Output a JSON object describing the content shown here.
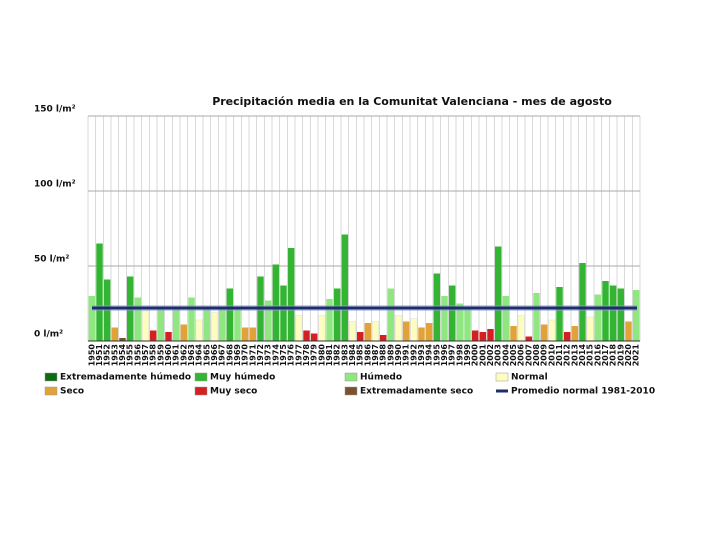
{
  "chart_data": {
    "type": "bar",
    "title": "Precipitación media en la Comunitat Valenciana - mes de agosto",
    "categories": [
      "1950",
      "1951",
      "1952",
      "1953",
      "1954",
      "1955",
      "1956",
      "1957",
      "1958",
      "1959",
      "1960",
      "1961",
      "1962",
      "1963",
      "1964",
      "1965",
      "1966",
      "1967",
      "1968",
      "1969",
      "1970",
      "1971",
      "1972",
      "1973",
      "1974",
      "1975",
      "1976",
      "1977",
      "1978",
      "1979",
      "1980",
      "1981",
      "1982",
      "1983",
      "1984",
      "1985",
      "1986",
      "1987",
      "1988",
      "1989",
      "1990",
      "1991",
      "1992",
      "1993",
      "1994",
      "1995",
      "1996",
      "1997",
      "1998",
      "1999",
      "2000",
      "2001",
      "2002",
      "2003",
      "2004",
      "2005",
      "2006",
      "2007",
      "2008",
      "2009",
      "2010",
      "2011",
      "2012",
      "2013",
      "2014",
      "2015",
      "2016",
      "2017",
      "2018",
      "2019",
      "2020",
      "2021"
    ],
    "values": [
      30,
      65,
      41,
      9,
      2,
      43,
      29,
      20,
      7,
      22,
      6,
      22,
      11,
      29,
      14,
      21,
      19,
      22,
      35,
      22,
      9,
      9,
      43,
      27,
      51,
      37,
      62,
      17,
      7,
      5,
      17,
      28,
      35,
      71,
      13,
      6,
      12,
      13,
      4,
      35,
      17,
      13,
      15,
      9,
      12,
      45,
      30,
      37,
      25,
      22,
      7,
      6,
      8,
      63,
      30,
      10,
      17,
      3,
      32,
      11,
      14,
      36,
      6,
      10,
      52,
      16,
      31,
      40,
      37,
      35,
      13,
      34
    ],
    "colors": [
      "#90e680",
      "#33b533",
      "#33b533",
      "#e2a23a",
      "#7a5230",
      "#33b533",
      "#90e680",
      "#fdfdc0",
      "#d42020",
      "#90e680",
      "#d42020",
      "#90e680",
      "#e2a23a",
      "#90e680",
      "#fdfdc0",
      "#90e680",
      "#fdfdc0",
      "#90e680",
      "#33b533",
      "#90e680",
      "#e2a23a",
      "#e2a23a",
      "#33b533",
      "#90e680",
      "#33b533",
      "#33b533",
      "#33b533",
      "#fdfdc0",
      "#d42020",
      "#d42020",
      "#fdfdc0",
      "#90e680",
      "#33b533",
      "#33b533",
      "#fdfdc0",
      "#d42020",
      "#e2a23a",
      "#fdfdc0",
      "#d42020",
      "#90e680",
      "#fdfdc0",
      "#e2a23a",
      "#fdfdc0",
      "#e2a23a",
      "#e2a23a",
      "#33b533",
      "#90e680",
      "#33b533",
      "#90e680",
      "#90e680",
      "#d42020",
      "#d42020",
      "#d42020",
      "#33b533",
      "#90e680",
      "#e2a23a",
      "#fdfdc0",
      "#d42020",
      "#90e680",
      "#e2a23a",
      "#fdfdc0",
      "#33b533",
      "#d42020",
      "#e2a23a",
      "#33b533",
      "#fdfdc0",
      "#90e680",
      "#33b533",
      "#33b533",
      "#33b533",
      "#e2a23a",
      "#90e680"
    ],
    "ylim": [
      0,
      150
    ],
    "yticks": [
      {
        "value": 0,
        "label": "0 l/m²"
      },
      {
        "value": 50,
        "label": "50 l/m²"
      },
      {
        "value": 100,
        "label": "100 l/m²"
      },
      {
        "value": 150,
        "label": "150 l/m²"
      }
    ],
    "grid": true,
    "legend": [
      {
        "name": "Extremadamente húmedo",
        "color": "#0d6b12"
      },
      {
        "name": "Muy húmedo",
        "color": "#33b533"
      },
      {
        "name": "Húmedo",
        "color": "#90e680"
      },
      {
        "name": "Normal",
        "color": "#fdfdc0"
      },
      {
        "name": "Seco",
        "color": "#e2a23a"
      },
      {
        "name": "Muy seco",
        "color": "#d42020"
      },
      {
        "name": "Extremadamente seco",
        "color": "#7a5230"
      }
    ],
    "average": {
      "name": "Promedio normal 1981-2010",
      "value": 22,
      "color": "#1f2d6b"
    }
  }
}
